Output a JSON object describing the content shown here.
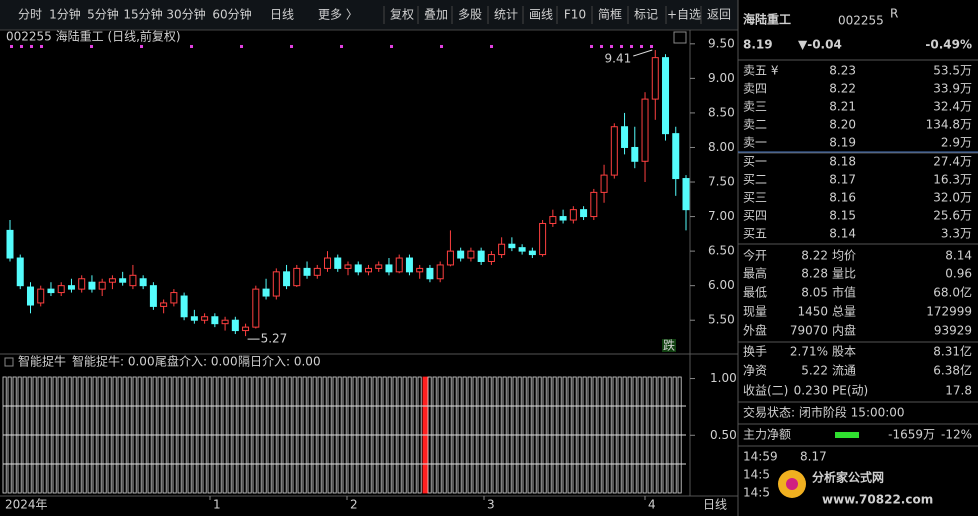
{
  "toolbar": {
    "tabs": [
      "分时",
      "1分钟",
      "5分钟",
      "15分钟",
      "30分钟",
      "60分钟",
      "日线",
      "更多 〉"
    ],
    "active_tab": 6,
    "buttons": [
      "复权",
      "叠加",
      "多股",
      "统计",
      "画线",
      "F10",
      "简框",
      "标记",
      "+自选",
      "返回"
    ]
  },
  "chart": {
    "header": "002255 海陆重工 (日线,前复权)",
    "ylim": [
      5.04,
      9.7
    ],
    "yticks": [
      {
        "value": 9.5,
        "label": "9.50"
      },
      {
        "value": 9,
        "label": "9.00"
      },
      {
        "value": 8.5,
        "label": "8.50"
      },
      {
        "value": 8,
        "label": "8.00"
      },
      {
        "value": 7.5,
        "label": "7.50"
      },
      {
        "value": 7,
        "label": "7.00"
      },
      {
        "value": 6.5,
        "label": "6.50"
      },
      {
        "value": 6,
        "label": "6.00"
      },
      {
        "value": 5.5,
        "label": "5.50"
      }
    ],
    "high_label": {
      "value": 9.41,
      "label": "9.41"
    },
    "low_label": {
      "value": 5.27,
      "label": "5.27"
    },
    "flag": "跌",
    "up_color": "#ff4040",
    "down_color": "#54fcfc",
    "open": [
      6.8,
      6.4,
      5.98,
      5.75,
      5.95,
      5.9,
      6.0,
      5.95,
      6.05,
      5.95,
      6.05,
      6.1,
      6.0,
      6.1,
      6.0,
      5.7,
      5.75,
      5.85,
      5.55,
      5.5,
      5.55,
      5.45,
      5.5,
      5.35,
      5.4,
      5.95,
      5.85,
      6.2,
      6.0,
      6.25,
      6.15,
      6.25,
      6.4,
      6.25,
      6.3,
      6.2,
      6.25,
      6.3,
      6.2,
      6.4,
      6.2,
      6.25,
      6.1,
      6.3,
      6.5,
      6.4,
      6.5,
      6.35,
      6.45,
      6.6,
      6.55,
      6.5,
      6.45,
      6.9,
      7.0,
      6.95,
      7.1,
      7.0,
      7.35,
      7.6,
      8.3,
      8.0,
      7.8,
      8.7,
      9.3,
      8.2,
      7.55
    ],
    "high": [
      6.95,
      6.45,
      6.05,
      6.0,
      6.05,
      6.05,
      6.1,
      6.15,
      6.15,
      6.1,
      6.15,
      6.2,
      6.3,
      6.15,
      6.05,
      5.8,
      5.95,
      5.9,
      5.65,
      5.6,
      5.6,
      5.55,
      5.55,
      5.45,
      6.0,
      6.1,
      6.25,
      6.3,
      6.3,
      6.35,
      6.3,
      6.5,
      6.45,
      6.35,
      6.35,
      6.3,
      6.35,
      6.4,
      6.45,
      6.45,
      6.3,
      6.3,
      6.35,
      6.8,
      6.55,
      6.55,
      6.55,
      6.5,
      6.7,
      6.7,
      6.6,
      6.55,
      6.95,
      7.1,
      7.1,
      7.15,
      7.15,
      7.4,
      7.75,
      8.35,
      8.5,
      8.3,
      8.8,
      9.41,
      9.35,
      8.3,
      7.6
    ],
    "low": [
      6.35,
      5.95,
      5.6,
      5.7,
      5.85,
      5.85,
      5.9,
      5.9,
      5.9,
      5.85,
      5.95,
      6.0,
      5.95,
      5.95,
      5.65,
      5.6,
      5.7,
      5.5,
      5.45,
      5.45,
      5.4,
      5.35,
      5.3,
      5.27,
      5.38,
      5.8,
      5.8,
      5.95,
      5.98,
      6.1,
      6.1,
      6.2,
      6.2,
      6.15,
      6.15,
      6.15,
      6.2,
      6.15,
      6.18,
      6.15,
      6.1,
      6.05,
      6.05,
      6.28,
      6.35,
      6.35,
      6.3,
      6.3,
      6.4,
      6.5,
      6.45,
      6.4,
      6.42,
      6.85,
      6.9,
      6.9,
      6.95,
      6.95,
      7.2,
      7.55,
      7.9,
      7.7,
      7.5,
      8.4,
      8.1,
      7.3,
      6.8
    ],
    "close": [
      6.4,
      6.0,
      5.72,
      5.95,
      5.9,
      6.0,
      5.95,
      6.1,
      5.95,
      6.05,
      6.1,
      6.05,
      6.15,
      6.0,
      5.7,
      5.75,
      5.9,
      5.55,
      5.5,
      5.55,
      5.45,
      5.5,
      5.35,
      5.4,
      5.95,
      5.85,
      6.2,
      6.0,
      6.25,
      6.15,
      6.25,
      6.4,
      6.25,
      6.3,
      6.2,
      6.25,
      6.3,
      6.2,
      6.4,
      6.2,
      6.25,
      6.1,
      6.3,
      6.5,
      6.4,
      6.5,
      6.35,
      6.45,
      6.6,
      6.55,
      6.5,
      6.45,
      6.9,
      7.0,
      6.95,
      7.1,
      7.0,
      7.35,
      7.6,
      8.3,
      8.0,
      7.8,
      8.7,
      9.3,
      8.2,
      7.55,
      7.1
    ]
  },
  "indicator": {
    "name": "智能捉牛",
    "legend": [
      {
        "text": "智能捉牛: 0.00",
        "color": "#ffff40"
      },
      {
        "text": "尾盘介入: 0.00",
        "color": "#ff3030"
      },
      {
        "text": "隔日介入: 0.00",
        "color": "#e040e0"
      }
    ],
    "ylim": [
      0,
      1.04
    ],
    "yticks": [
      {
        "value": 1,
        "label": "1.00"
      },
      {
        "value": 0.5,
        "label": "0.50"
      }
    ]
  },
  "time_axis": {
    "labels": [
      "2024年",
      "1",
      "2",
      "3",
      "4"
    ],
    "period": "日线"
  },
  "quote": {
    "name": "海陆重工",
    "code": "002255",
    "badge": "R",
    "price": "8.19",
    "change": "▼-0.04",
    "change_pct": "-0.49%",
    "asks": [
      {
        "label": "卖五 ¥",
        "price": "8.23",
        "volume": "53.5万",
        "color": "#e0e0e0"
      },
      {
        "label": "卖四",
        "price": "8.22",
        "volume": "33.9万",
        "color": "#30e030"
      },
      {
        "label": "卖三",
        "price": "8.21",
        "volume": "32.4万",
        "color": "#30e030"
      },
      {
        "label": "卖二",
        "price": "8.20",
        "volume": "134.8万",
        "color": "#30e030"
      },
      {
        "label": "卖一",
        "price": "8.19",
        "volume": "2.9万",
        "color": "#30e030"
      }
    ],
    "bids": [
      {
        "label": "买一",
        "price": "8.18",
        "volume": "27.4万",
        "color": "#30e030"
      },
      {
        "label": "买二",
        "price": "8.17",
        "volume": "16.3万",
        "color": "#30e030"
      },
      {
        "label": "买三",
        "price": "8.16",
        "volume": "32.0万",
        "color": "#30e030"
      },
      {
        "label": "买四",
        "price": "8.15",
        "volume": "25.6万",
        "color": "#30e030"
      },
      {
        "label": "买五",
        "price": "8.14",
        "volume": "3.3万",
        "color": "#30e030"
      }
    ],
    "stats": [
      {
        "l1": "今开",
        "v1": "8.22",
        "c1": "#ff4040",
        "l2": "均价",
        "v2": "8.14",
        "c2": "#30e030"
      },
      {
        "l1": "最高",
        "v1": "8.28",
        "c1": "#ff4040",
        "l2": "量比",
        "v2": "0.96",
        "c2": "#30e030"
      },
      {
        "l1": "最低",
        "v1": "8.05",
        "c1": "#30e030",
        "l2": "市值",
        "v2": "68.0亿",
        "c2": "#d0d0d0"
      },
      {
        "l1": "现量",
        "v1": "1450",
        "c1": "#e040e0",
        "l2": "总量",
        "v2": "172999",
        "c2": "#d0d0d0"
      },
      {
        "l1": "外盘",
        "v1": "79070",
        "c1": "#ff4040",
        "l2": "内盘",
        "v2": "93929",
        "c2": "#30e030"
      },
      {
        "l1": "换手",
        "v1": "2.71%",
        "c1": "#d0d0d0",
        "l2": "股本",
        "v2": "8.31亿",
        "c2": "#d0d0d0"
      },
      {
        "l1": "净资",
        "v1": "5.22",
        "c1": "#d0d0d0",
        "l2": "流通",
        "v2": "6.38亿",
        "c2": "#d0d0d0"
      },
      {
        "l1": "收益(二)",
        "v1": "0.230",
        "c1": "#d0d0d0",
        "l2": "PE(动)",
        "v2": "17.8",
        "c2": "#d0d0d0"
      }
    ],
    "status": "交易状态: 闭市阶段 15:00:00",
    "main_flow": {
      "label": "主力净额",
      "amount": "-1659万",
      "pct": "-12%"
    },
    "ticks": [
      {
        "time": "14:59",
        "price": "8.17"
      },
      {
        "time": "14:5"
      },
      {
        "time": "14:5"
      }
    ],
    "watermark": {
      "title": "分析家公式网",
      "url": "www.70822.com"
    }
  }
}
